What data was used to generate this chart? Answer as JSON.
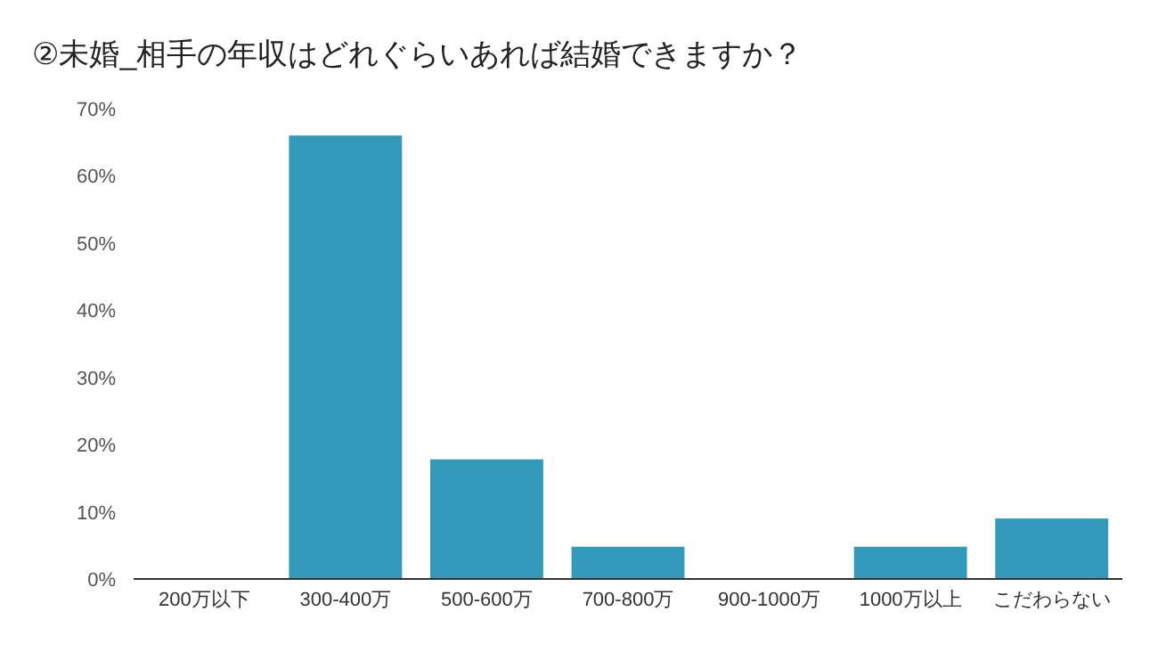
{
  "chart_data": {
    "type": "bar",
    "title": "②未婚_相手の年収はどれぐらいあれば結婚できますか？",
    "categories": [
      "200万以下",
      "300-400万",
      "500-600万",
      "700-800万",
      "900-1000万",
      "1000万以上",
      "こだわらない"
    ],
    "values": [
      0,
      66,
      17.8,
      4.8,
      0,
      4.8,
      9
    ],
    "color": "#3399bb",
    "ylim": [
      0,
      70
    ],
    "yticks": [
      {
        "value": 0,
        "label": "0%"
      },
      {
        "value": 10,
        "label": "10%"
      },
      {
        "value": 20,
        "label": "20%"
      },
      {
        "value": 30,
        "label": "30%"
      },
      {
        "value": 40,
        "label": "40%"
      },
      {
        "value": 50,
        "label": "50%"
      },
      {
        "value": 60,
        "label": "60%"
      },
      {
        "value": 70,
        "label": "70%"
      }
    ],
    "grid": false
  }
}
